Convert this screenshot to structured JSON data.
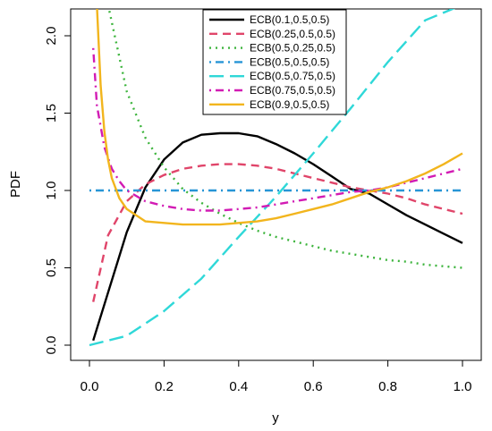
{
  "chart_data": {
    "type": "line",
    "xlabel": "y",
    "ylabel": "PDF",
    "xlim": [
      0,
      1
    ],
    "ylim": [
      0,
      2.2
    ],
    "x_ticks": [
      "0.0",
      "0.2",
      "0.4",
      "0.6",
      "0.8",
      "1.0"
    ],
    "y_ticks": [
      "0.0",
      "0.5",
      "1.0",
      "1.5",
      "2.0"
    ],
    "legend_position": "top-center",
    "grid": false,
    "series": [
      {
        "name": "ECB(0.1,0.5,0.5)",
        "color": "#000000",
        "dash": "solid",
        "x": [
          0.01,
          0.05,
          0.1,
          0.15,
          0.2,
          0.25,
          0.3,
          0.35,
          0.4,
          0.45,
          0.5,
          0.55,
          0.6,
          0.65,
          0.7,
          0.75,
          0.8,
          0.85,
          0.9,
          0.95,
          1.0
        ],
        "y": [
          0.03,
          0.34,
          0.73,
          1.02,
          1.2,
          1.31,
          1.36,
          1.37,
          1.37,
          1.35,
          1.3,
          1.24,
          1.17,
          1.09,
          1.01,
          0.98,
          0.91,
          0.84,
          0.78,
          0.72,
          0.66
        ]
      },
      {
        "name": "ECB(0.25,0.5,0.5)",
        "color": "#e0456a",
        "dash": "dashed",
        "x": [
          0.01,
          0.05,
          0.1,
          0.15,
          0.2,
          0.25,
          0.3,
          0.35,
          0.4,
          0.45,
          0.5,
          0.55,
          0.6,
          0.65,
          0.7,
          0.75,
          0.8,
          0.85,
          0.9,
          0.95,
          1.0
        ],
        "y": [
          0.28,
          0.71,
          0.93,
          1.04,
          1.1,
          1.14,
          1.16,
          1.17,
          1.17,
          1.16,
          1.14,
          1.11,
          1.08,
          1.05,
          1.02,
          1.0,
          0.98,
          0.95,
          0.91,
          0.88,
          0.85
        ]
      },
      {
        "name": "ECB(0.5,0.25,0.5)",
        "color": "#3cb43c",
        "dash": "dotted",
        "x": [
          0.05,
          0.1,
          0.15,
          0.2,
          0.25,
          0.3,
          0.35,
          0.4,
          0.45,
          0.5,
          0.55,
          0.6,
          0.65,
          0.7,
          0.75,
          0.8,
          0.85,
          0.9,
          0.95,
          1.0
        ],
        "y": [
          2.2,
          1.64,
          1.34,
          1.15,
          1.01,
          0.92,
          0.85,
          0.79,
          0.74,
          0.7,
          0.67,
          0.64,
          0.61,
          0.59,
          0.57,
          0.55,
          0.54,
          0.52,
          0.51,
          0.5
        ]
      },
      {
        "name": "ECB(0.5,0.5,0.5)",
        "color": "#2795d6",
        "dash": "dotdash",
        "x": [
          0.0,
          1.0
        ],
        "y": [
          1.0,
          1.0
        ]
      },
      {
        "name": "ECB(0.5,0.75,0.5)",
        "color": "#2fd8d8",
        "dash": "longdash",
        "x": [
          0.0,
          0.1,
          0.2,
          0.3,
          0.4,
          0.5,
          0.6,
          0.7,
          0.8,
          0.9,
          1.0
        ],
        "y": [
          0.0,
          0.06,
          0.22,
          0.43,
          0.7,
          0.96,
          1.24,
          1.53,
          1.83,
          2.1,
          2.2
        ]
      },
      {
        "name": "ECB(0.75,0.5,0.5)",
        "color": "#d21bb4",
        "dash": "dotdash",
        "x": [
          0.01,
          0.02,
          0.04,
          0.06,
          0.08,
          0.1,
          0.15,
          0.2,
          0.25,
          0.3,
          0.35,
          0.4,
          0.45,
          0.5,
          0.55,
          0.6,
          0.65,
          0.7,
          0.75,
          0.8,
          0.85,
          0.9,
          0.95,
          1.0
        ],
        "y": [
          1.92,
          1.55,
          1.28,
          1.14,
          1.06,
          1.0,
          0.93,
          0.9,
          0.88,
          0.87,
          0.87,
          0.88,
          0.89,
          0.91,
          0.93,
          0.95,
          0.97,
          0.99,
          1.0,
          1.02,
          1.05,
          1.08,
          1.11,
          1.14
        ]
      },
      {
        "name": "ECB(0.9,0.5,0.5)",
        "color": "#f2b51d",
        "dash": "solid",
        "x": [
          0.02,
          0.03,
          0.04,
          0.05,
          0.06,
          0.08,
          0.1,
          0.15,
          0.2,
          0.25,
          0.3,
          0.35,
          0.4,
          0.45,
          0.5,
          0.55,
          0.6,
          0.65,
          0.7,
          0.75,
          0.8,
          0.85,
          0.9,
          0.95,
          1.0
        ],
        "y": [
          2.2,
          1.68,
          1.38,
          1.2,
          1.08,
          0.95,
          0.88,
          0.8,
          0.79,
          0.78,
          0.78,
          0.78,
          0.79,
          0.8,
          0.82,
          0.85,
          0.88,
          0.91,
          0.95,
          0.99,
          1.02,
          1.06,
          1.11,
          1.17,
          1.24
        ]
      }
    ]
  }
}
